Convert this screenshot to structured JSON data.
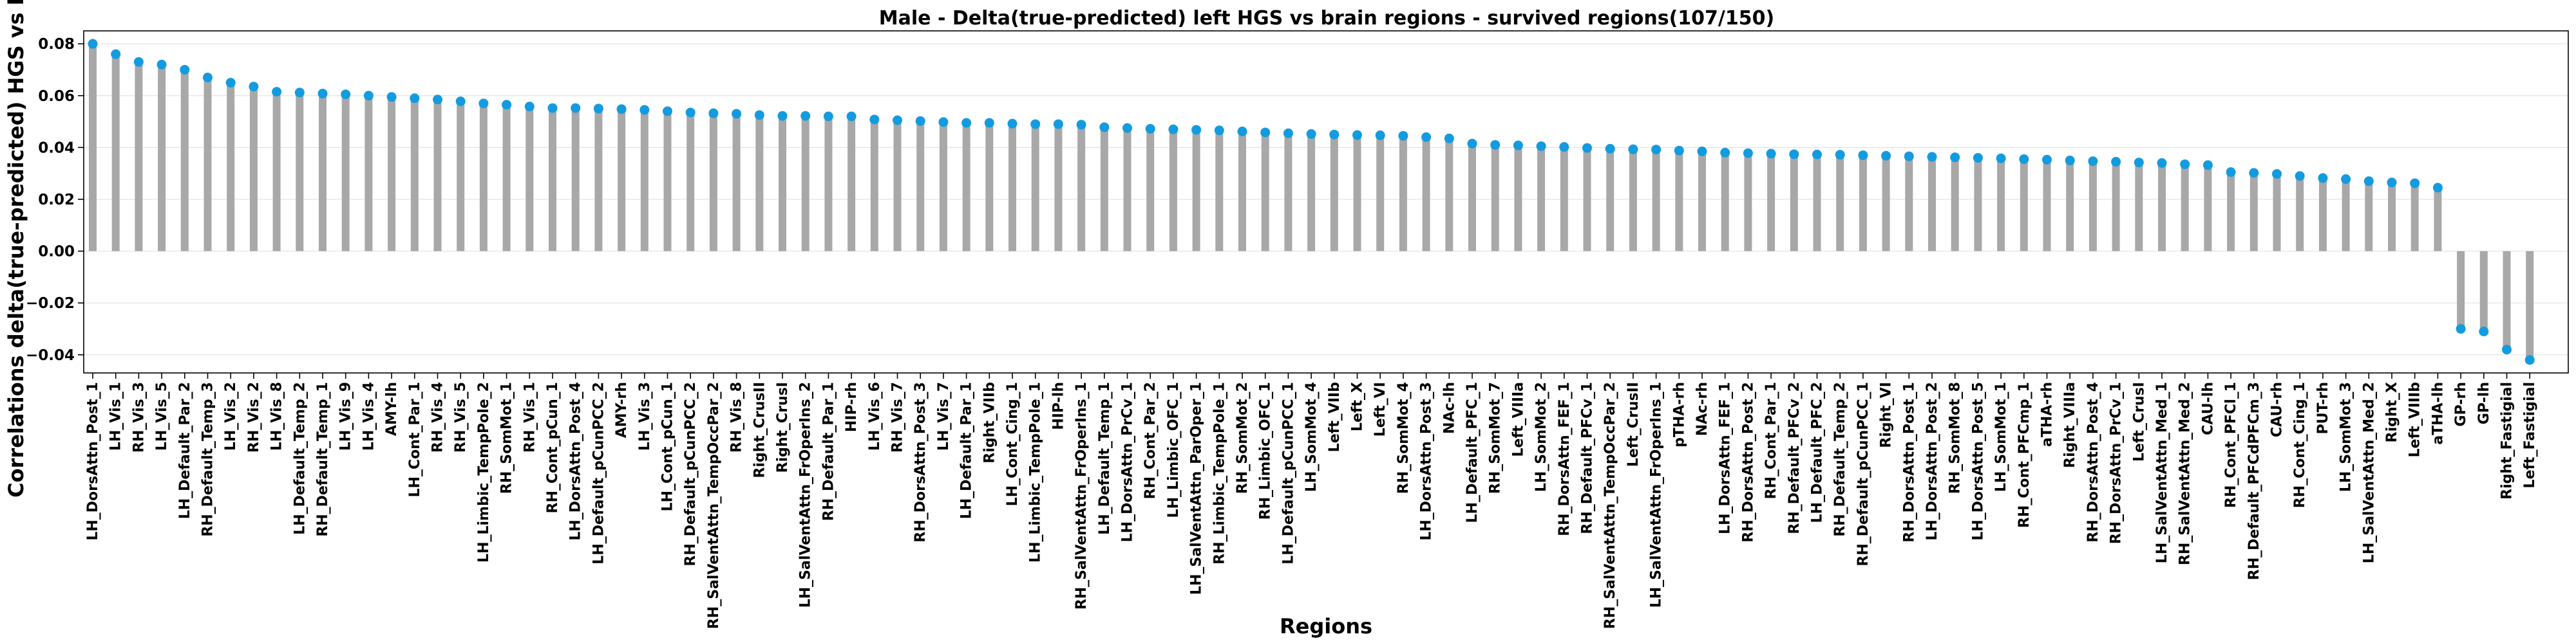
{
  "chart_data": {
    "type": "bar",
    "title": "Male - Delta(true-predicted) left HGS vs brain regions - survived regions(107/150)",
    "xlabel": "Regions",
    "ylabel": "Correlations delta(true-predicted) HGS vs brain",
    "ylim": [
      -0.047,
      0.085
    ],
    "yticks": [
      -0.04,
      -0.02,
      0.0,
      0.02,
      0.04,
      0.06,
      0.08
    ],
    "ytick_labels": [
      "−0.04",
      "−0.02",
      "0.00",
      "0.02",
      "0.04",
      "0.06",
      "0.08"
    ],
    "grid": true,
    "bar_color": "#a8a8a8",
    "marker_color": "#139be0",
    "categories": [
      "LH_DorsAttn_Post_1",
      "LH_Vis_1",
      "RH_Vis_3",
      "LH_Vis_5",
      "LH_Default_Par_2",
      "RH_Default_Temp_3",
      "LH_Vis_2",
      "RH_Vis_2",
      "LH_Vis_8",
      "LH_Default_Temp_2",
      "RH_Default_Temp_1",
      "LH_Vis_9",
      "LH_Vis_4",
      "AMY-lh",
      "LH_Cont_Par_1",
      "RH_Vis_4",
      "RH_Vis_5",
      "LH_Limbic_TempPole_2",
      "RH_SomMot_1",
      "RH_Vis_1",
      "RH_Cont_pCun_1",
      "LH_DorsAttn_Post_4",
      "LH_Default_pCunPCC_2",
      "AMY-rh",
      "LH_Vis_3",
      "LH_Cont_pCun_1",
      "RH_Default_pCunPCC_2",
      "RH_SalVentAttn_TempOccPar_2",
      "RH_Vis_8",
      "Right_CrusII",
      "Right_CrusI",
      "LH_SalVentAttn_FrOperIns_2",
      "RH_Default_Par_1",
      "HIP-rh",
      "LH_Vis_6",
      "RH_Vis_7",
      "RH_DorsAttn_Post_3",
      "LH_Vis_7",
      "LH_Default_Par_1",
      "Right_VIIb",
      "LH_Cont_Cing_1",
      "LH_Limbic_TempPole_1",
      "HIP-lh",
      "RH_SalVentAttn_FrOperIns_1",
      "LH_Default_Temp_1",
      "LH_DorsAttn_PrCv_1",
      "RH_Cont_Par_2",
      "LH_Limbic_OFC_1",
      "LH_SalVentAttn_ParOper_1",
      "RH_Limbic_TempPole_1",
      "RH_SomMot_2",
      "RH_Limbic_OFC_1",
      "LH_Default_pCunPCC_1",
      "LH_SomMot_4",
      "Left_VIIb",
      "Left_X",
      "Left_VI",
      "RH_SomMot_4",
      "LH_DorsAttn_Post_3",
      "NAc-lh",
      "LH_Default_PFC_1",
      "RH_SomMot_7",
      "Left_VIIIa",
      "LH_SomMot_2",
      "RH_DorsAttn_FEF_1",
      "RH_Default_PFCv_1",
      "RH_SalVentAttn_TempOccPar_2",
      "Left_CrusII",
      "LH_SalVentAttn_FrOperIns_1",
      "pTHA-rh",
      "NAc-rh",
      "LH_DorsAttn_FEF_1",
      "RH_DorsAttn_Post_2",
      "RH_Cont_Par_1",
      "RH_Default_PFCv_2",
      "LH_Default_PFC_2",
      "RH_Default_Temp_2",
      "RH_Default_pCunPCC_1",
      "Right_VI",
      "RH_DorsAttn_Post_1",
      "LH_DorsAttn_Post_2",
      "RH_SomMot_8",
      "LH_DorsAttn_Post_5",
      "LH_SomMot_1",
      "RH_Cont_PFCmp_1",
      "aTHA-rh",
      "Right_VIIIa",
      "RH_DorsAttn_Post_4",
      "RH_DorsAttn_PrCv_1",
      "Left_CrusI",
      "LH_SalVentAttn_Med_1",
      "RH_SalVentAttn_Med_2",
      "CAU-lh",
      "RH_Cont_PFCl_1",
      "RH_Default_PFCdPFCm_3",
      "CAU-rh",
      "RH_Cont_Cing_1",
      "PUT-rh",
      "LH_SomMot_3",
      "LH_SalVentAttn_Med_2",
      "Right_X",
      "Left_VIIIb",
      "aTHA-lh",
      "GP-rh",
      "GP-lh",
      "Right_Fastigial",
      "Left_Fastigial"
    ],
    "values": [
      0.08,
      0.076,
      0.073,
      0.072,
      0.07,
      0.067,
      0.065,
      0.0635,
      0.0615,
      0.0612,
      0.0608,
      0.0605,
      0.06,
      0.0595,
      0.059,
      0.0585,
      0.0578,
      0.057,
      0.0565,
      0.0558,
      0.0552,
      0.0552,
      0.055,
      0.0548,
      0.0545,
      0.054,
      0.0535,
      0.0532,
      0.053,
      0.0525,
      0.0522,
      0.0522,
      0.052,
      0.052,
      0.0508,
      0.0505,
      0.0502,
      0.0498,
      0.0495,
      0.0495,
      0.0492,
      0.049,
      0.049,
      0.0488,
      0.0478,
      0.0475,
      0.0472,
      0.047,
      0.0468,
      0.0466,
      0.0462,
      0.0458,
      0.0455,
      0.0452,
      0.045,
      0.0448,
      0.0447,
      0.0445,
      0.044,
      0.0435,
      0.0415,
      0.041,
      0.0408,
      0.0405,
      0.0402,
      0.0398,
      0.0395,
      0.0393,
      0.0392,
      0.0388,
      0.0385,
      0.038,
      0.0378,
      0.0376,
      0.0374,
      0.0373,
      0.0372,
      0.037,
      0.0368,
      0.0366,
      0.0364,
      0.0362,
      0.036,
      0.0358,
      0.0355,
      0.0353,
      0.035,
      0.0347,
      0.0345,
      0.0342,
      0.034,
      0.0335,
      0.0332,
      0.0305,
      0.0302,
      0.0298,
      0.029,
      0.0282,
      0.0278,
      0.027,
      0.0265,
      0.0262,
      0.0245,
      -0.03,
      -0.031,
      -0.038,
      -0.042
    ]
  }
}
